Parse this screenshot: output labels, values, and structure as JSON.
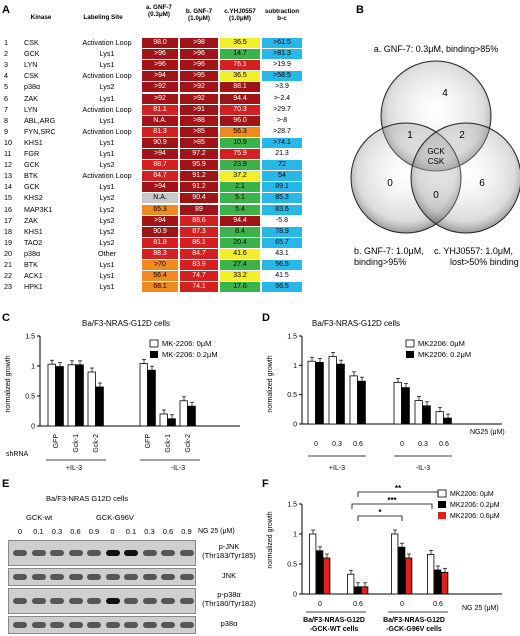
{
  "panels": {
    "a": "A",
    "b": "B",
    "c": "C",
    "d": "D",
    "e": "E",
    "f": "F"
  },
  "colors": {
    "dark_red": "#a01418",
    "red": "#d42020",
    "orange": "#ef8a22",
    "yellow": "#f5ee2a",
    "green": "#39b34a",
    "cyan": "#28b8e8",
    "gray": "#c8c8c8"
  },
  "table": {
    "headers": {
      "kinase": "Kinase",
      "site": "Labeling Site",
      "a": "a. GNF-7 (0.3μM)",
      "b": "b. GNF-7 (1.0μM)",
      "c": "c.YHJ0557 (1.0μM)",
      "d": "subtraction b-c"
    },
    "rows": [
      {
        "n": "1",
        "kinase": "CSK",
        "site": "Activation Loop",
        "a": "98.0",
        "b": ">98",
        "c": "36.5",
        "d": ">61.5",
        "ca": "dark_red",
        "cb": "dark_red",
        "cc": "yellow",
        "cd": "cyan"
      },
      {
        "n": "2",
        "kinase": "GCK",
        "site": "Lys1",
        "a": ">96",
        "b": ">96",
        "c": "14.7",
        "d": ">81.3",
        "ca": "dark_red",
        "cb": "dark_red",
        "cc": "green",
        "cd": "cyan"
      },
      {
        "n": "3",
        "kinase": "LYN",
        "site": "Lys1",
        "a": ">96",
        "b": ">96",
        "c": "76.1",
        "d": ">19.9",
        "ca": "dark_red",
        "cb": "dark_red",
        "cc": "red",
        "cd": "none"
      },
      {
        "n": "4",
        "kinase": "CSK",
        "site": "Activation Loop",
        "a": ">94",
        "b": ">95",
        "c": "36.5",
        "d": ">58.5",
        "ca": "dark_red",
        "cb": "dark_red",
        "cc": "yellow",
        "cd": "cyan"
      },
      {
        "n": "5",
        "kinase": "p38α",
        "site": "Lys2",
        "a": ">92",
        "b": ">92",
        "c": "88.1",
        "d": ">3.9",
        "ca": "dark_red",
        "cb": "dark_red",
        "cc": "dark_red",
        "cd": "none"
      },
      {
        "n": "6",
        "kinase": "ZAK",
        "site": "Lys1",
        "a": ">92",
        "b": ">92",
        "c": "94.4",
        "d": ">-2.4",
        "ca": "dark_red",
        "cb": "dark_red",
        "cc": "dark_red",
        "cd": "none"
      },
      {
        "n": "7",
        "kinase": "LYN",
        "site": "Activation Loop",
        "a": "81.1",
        "b": ">91",
        "c": "70.3",
        "d": ">29.7",
        "ca": "red",
        "cb": "dark_red",
        "cc": "red",
        "cd": "none"
      },
      {
        "n": "8",
        "kinase": "ABL,ARG",
        "site": "Lys1",
        "a": "N.A.",
        "b": ">88",
        "c": "96.0",
        "d": ">-8",
        "ca": "dark_red",
        "cb": "dark_red",
        "cc": "dark_red",
        "cd": "none"
      },
      {
        "n": "9",
        "kinase": "FYN,SRC",
        "site": "Activation Loop",
        "a": "81.3",
        "b": ">85",
        "c": "56.3",
        "d": ">28.7",
        "ca": "red",
        "cb": "dark_red",
        "cc": "orange",
        "cd": "none"
      },
      {
        "n": "10",
        "kinase": "KHS1",
        "site": "Lys1",
        "a": "90.9",
        "b": ">85",
        "c": "10.9",
        "d": ">74.1",
        "ca": "dark_red",
        "cb": "dark_red",
        "cc": "green",
        "cd": "cyan"
      },
      {
        "n": "11",
        "kinase": "FGR",
        "site": "Lys1",
        "a": ">94",
        "b": "97.2",
        "c": "75.9",
        "d": "21.3",
        "ca": "dark_red",
        "cb": "dark_red",
        "cc": "red",
        "cd": "none"
      },
      {
        "n": "12",
        "kinase": "GCK",
        "site": "Lys2",
        "a": "88.7",
        "b": "95.9",
        "c": "23.9",
        "d": "72",
        "ca": "red",
        "cb": "dark_red",
        "cc": "green",
        "cd": "cyan"
      },
      {
        "n": "13",
        "kinase": "BTK",
        "site": "Activation Loop",
        "a": "84.7",
        "b": "91.2",
        "c": "37.2",
        "d": "54",
        "ca": "red",
        "cb": "dark_red",
        "cc": "yellow",
        "cd": "cyan"
      },
      {
        "n": "14",
        "kinase": "GCK",
        "site": "Lys1",
        "a": ">94",
        "b": "91.2",
        "c": "2.1",
        "d": "89.1",
        "ca": "dark_red",
        "cb": "dark_red",
        "cc": "green",
        "cd": "cyan"
      },
      {
        "n": "15",
        "kinase": "KHS2",
        "site": "Lys2",
        "a": "N.A.",
        "b": "90.4",
        "c": "5.1",
        "d": "85.3",
        "ca": "gray",
        "cb": "dark_red",
        "cc": "green",
        "cd": "cyan"
      },
      {
        "n": "16",
        "kinase": "MAP3K1",
        "site": "Lys2",
        "a": "65.3",
        "b": "89",
        "c": "5.4",
        "d": "83.6",
        "ca": "orange",
        "cb": "dark_red",
        "cc": "green",
        "cd": "cyan"
      },
      {
        "n": "17",
        "kinase": "ZAK",
        "site": "Lys2",
        "a": ">94",
        "b": "88.6",
        "c": "94.4",
        "d": "-5.8",
        "ca": "dark_red",
        "cb": "red",
        "cc": "dark_red",
        "cd": "none"
      },
      {
        "n": "18",
        "kinase": "KHS1",
        "site": "Lys2",
        "a": "90.9",
        "b": "87.3",
        "c": "8.4",
        "d": "78.9",
        "ca": "dark_red",
        "cb": "red",
        "cc": "green",
        "cd": "cyan"
      },
      {
        "n": "19",
        "kinase": "TAO2",
        "site": "Lys2",
        "a": "81.8",
        "b": "86.1",
        "c": "20.4",
        "d": "65.7",
        "ca": "red",
        "cb": "red",
        "cc": "green",
        "cd": "cyan"
      },
      {
        "n": "20",
        "kinase": "p38α",
        "site": "Other",
        "a": "88.3",
        "b": "84.7",
        "c": "41.6",
        "d": "43.1",
        "ca": "red",
        "cb": "red",
        "cc": "yellow",
        "cd": "none"
      },
      {
        "n": "21",
        "kinase": "BTK",
        "site": "Lys1",
        "a": ">70",
        "b": "83.9",
        "c": "27.4",
        "d": "56.5",
        "ca": "orange",
        "cb": "red",
        "cc": "green",
        "cd": "cyan"
      },
      {
        "n": "22",
        "kinase": "ACK1",
        "site": "Lys1",
        "a": "56.4",
        "b": "74.7",
        "c": "33.2",
        "d": "41.5",
        "ca": "orange",
        "cb": "red",
        "cc": "yellow",
        "cd": "none"
      },
      {
        "n": "23",
        "kinase": "HPK1",
        "site": "Lys1",
        "a": "68.1",
        "b": "74.1",
        "c": "17.6",
        "d": "56.5",
        "ca": "orange",
        "cb": "red",
        "cc": "green",
        "cd": "cyan"
      }
    ]
  },
  "venn": {
    "label_a": "a. GNF-7: 0.3μM, binding>85%",
    "label_b": "b. GNF-7: 1.0μM,",
    "label_b2": "binding>95%",
    "label_c": "c. YHJ0557: 1.0μM,",
    "label_c2": "lost>50% binding",
    "n_a_only": "4",
    "n_ab": "1",
    "n_ac": "2",
    "n_b_only": "0",
    "n_c_only": "6",
    "n_bc": "0",
    "center1": "GCK",
    "center2": "CSK"
  },
  "panel_c": {
    "title": "Ba/F3-NRAS-G12D cells",
    "ylabel": "normalized growth",
    "legend": [
      "MK-2206: 0μM",
      "MK-2206: 0.2μM"
    ],
    "shrna_label": "shRNA",
    "groups": [
      "+IL-3",
      "-IL-3"
    ],
    "x_categories": [
      "GFP",
      "Gck-1",
      "Gck-2",
      "GFP",
      "Gck-1",
      "Gck-2"
    ],
    "values_0": [
      1.03,
      1.02,
      0.9,
      1.04,
      0.2,
      0.42
    ],
    "values_02": [
      0.99,
      1.02,
      0.65,
      0.93,
      0.12,
      0.33
    ],
    "yticks": [
      "0",
      "0.5",
      "1",
      "1.5"
    ],
    "ylim": [
      0,
      1.5
    ]
  },
  "panel_d": {
    "title": "Ba/F3-NRAS-G12D cells",
    "ylabel": "normalized growth",
    "legend": [
      "MK2206: 0μM",
      "MK2206: 0.2μM"
    ],
    "x_categories": [
      "0",
      "0.3",
      "0.6",
      "0",
      "0.3",
      "0.6"
    ],
    "groups": [
      "+IL-3",
      "-IL-3"
    ],
    "xlabel": "NG25 (μM)",
    "values_0": [
      1.07,
      1.15,
      0.82,
      0.71,
      0.4,
      0.21
    ],
    "values_02": [
      1.05,
      1.02,
      0.73,
      0.62,
      0.31,
      0.1
    ],
    "yticks": [
      "0",
      "0.5",
      "1",
      "1.5"
    ],
    "ylim": [
      0,
      1.5
    ]
  },
  "panel_e": {
    "title": "Ba/F3-NRAS G12D cells",
    "group1": "GCK-wt",
    "group2": "GCK-G96V",
    "conc": [
      "0",
      "0.1",
      "0.3",
      "0.6",
      "0.9",
      "0",
      "0.1",
      "0.3",
      "0.6",
      "0.9"
    ],
    "conc_label": "NG 25 (μM)",
    "bands": [
      {
        "label": "p-JNK",
        "sub": "(Thr183/Tyr185)"
      },
      {
        "label": "JNK",
        "sub": ""
      },
      {
        "label": "p-p38α",
        "sub": "(Thr180/Tyr182)"
      },
      {
        "label": "p38α",
        "sub": ""
      }
    ]
  },
  "panel_f": {
    "ylabel": "normalized growth",
    "legend": [
      "MK2206: 0μM",
      "MK2206: 0.2μM",
      "MK2206: 0.6μM"
    ],
    "x_categories": [
      "0",
      "0.6",
      "0",
      "0.6"
    ],
    "groups": [
      "Ba/F3-NRAS-G12D",
      "Ba/F3-NRAS-G12D"
    ],
    "groups2": [
      "-GCK-WT cells",
      "-GCK-G96V cells"
    ],
    "xlabel": "NG 25 (μM)",
    "values_0": [
      1.0,
      0.33,
      1.0,
      0.66
    ],
    "values_02": [
      0.72,
      0.12,
      0.78,
      0.4
    ],
    "values_06": [
      0.6,
      0.12,
      0.6,
      0.36
    ],
    "sig": [
      "**",
      "***",
      "*"
    ],
    "yticks": [
      "0",
      "0.5",
      "1",
      "1.5"
    ],
    "ylim": [
      0,
      1.5
    ]
  }
}
